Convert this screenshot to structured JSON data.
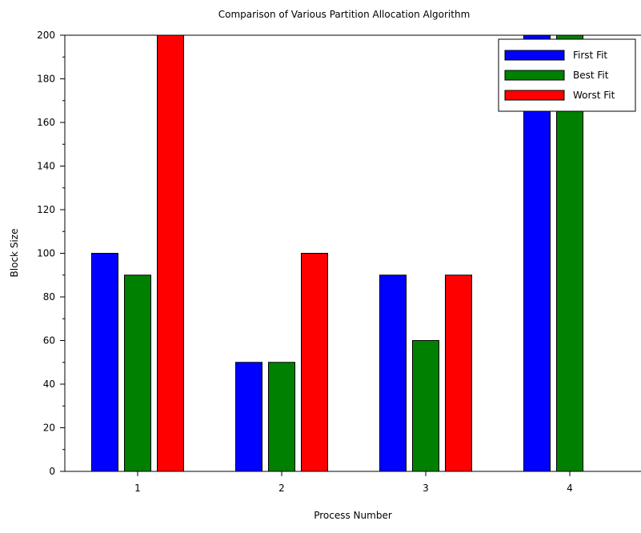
{
  "chart_data": {
    "type": "bar",
    "title": "Comparison of Various Partition Allocation Algorithm",
    "xlabel": "Process Number",
    "ylabel": "Block Size",
    "categories": [
      "1",
      "2",
      "3",
      "4"
    ],
    "series": [
      {
        "name": "First Fit",
        "color": "#0000ff",
        "values": [
          100,
          50,
          90,
          200
        ]
      },
      {
        "name": "Best Fit",
        "color": "#008000",
        "values": [
          90,
          50,
          60,
          200
        ]
      },
      {
        "name": "Worst Fit",
        "color": "#ff0000",
        "values": [
          200,
          100,
          90,
          0
        ]
      }
    ],
    "ylim": [
      0,
      200
    ],
    "yticks": [
      0,
      20,
      40,
      60,
      80,
      100,
      120,
      140,
      160,
      180,
      200
    ],
    "grid": false,
    "legend_position": "top-right"
  }
}
